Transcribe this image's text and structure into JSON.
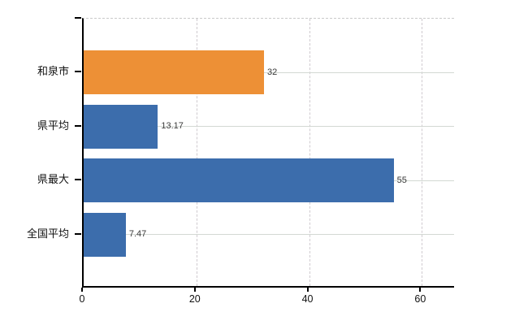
{
  "chart_data": {
    "type": "bar",
    "orientation": "horizontal",
    "title": "",
    "categories": [
      "和泉市",
      "県平均",
      "県最大",
      "全国平均"
    ],
    "values": [
      32,
      13.17,
      55,
      7.47
    ],
    "value_labels": [
      "32",
      "13.17",
      "55",
      "7.47"
    ],
    "bar_colors": [
      "#ED9036",
      "#3C6DAC",
      "#3C6DAC",
      "#3C6DAC"
    ],
    "xlim": [
      0,
      66
    ],
    "xticks": [
      0,
      20,
      40,
      60
    ],
    "xtick_labels": [
      "0",
      "20",
      "40",
      "60"
    ],
    "grid": true,
    "legend": "none"
  },
  "colors": {
    "axis": "#000000",
    "horizontal_grid": "#d3d8d3",
    "vertical_grid": "#cfcacf",
    "background": "#ffffff",
    "accent_orange": "#ED9036",
    "accent_blue": "#3C6DAC"
  }
}
